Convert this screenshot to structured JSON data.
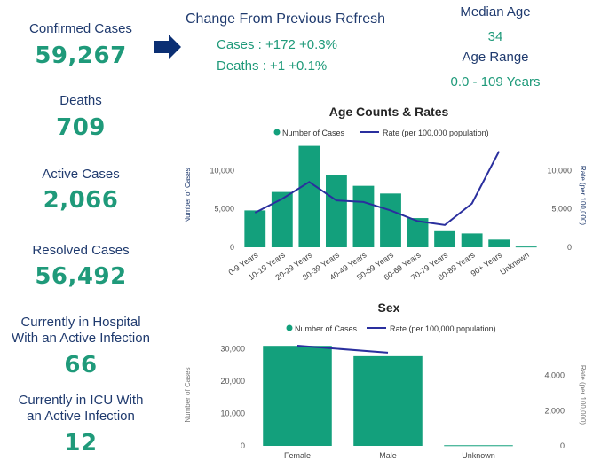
{
  "kpis": {
    "confirmed": {
      "label": "Confirmed Cases",
      "value": "59,267"
    },
    "deaths": {
      "label": "Deaths",
      "value": "709"
    },
    "active": {
      "label": "Active Cases",
      "value": "2,066"
    },
    "resolved": {
      "label": "Resolved Cases",
      "value": "56,492"
    },
    "hospital": {
      "label1": "Currently in Hospital",
      "label2": "With an Active Infection",
      "value": "66"
    },
    "icu": {
      "label1": "Currently in ICU With",
      "label2": "an Active Infection",
      "value": "12"
    }
  },
  "change": {
    "title": "Change From Previous Refresh",
    "cases": "Cases : +172 +0.3%",
    "deaths": "Deaths : +1 +0.1%"
  },
  "median": {
    "label": "Median Age",
    "value": "34",
    "range_label": "Age Range",
    "range_value": "0.0 - 109 Years"
  },
  "colors": {
    "bar": "#13a07c",
    "line": "#2a2f9e",
    "navy": "#1f3a6e",
    "green": "#1f9a7a"
  },
  "chart_data": [
    {
      "type": "bar",
      "title": "Age Counts & Rates",
      "legend": [
        "Number of Cases",
        "Rate (per 100,000 population)"
      ],
      "categories": [
        "0-9 Years",
        "10-19 Years",
        "20-29 Years",
        "30-39 Years",
        "40-49 Years",
        "50-59 Years",
        "60-69 Years",
        "70-79 Years",
        "80-89 Years",
        "90+ Years",
        "Unknown"
      ],
      "series": [
        {
          "name": "Number of Cases",
          "values": [
            4800,
            7200,
            13200,
            9400,
            8000,
            7000,
            3800,
            2100,
            1800,
            1000,
            100
          ]
        },
        {
          "name": "Rate (per 100,000 population)",
          "values": [
            4500,
            6300,
            8500,
            6100,
            5900,
            4800,
            3400,
            2900,
            5700,
            12500,
            null
          ]
        }
      ],
      "ylabel": "Number of Cases",
      "y2label": "Rate (per 100,000)",
      "yticks": [
        "0",
        "5,000",
        "10,000"
      ],
      "y2ticks": [
        "0",
        "5,000",
        "10,000"
      ],
      "ylim": [
        0,
        13500
      ],
      "y2lim": [
        0,
        13500
      ]
    },
    {
      "type": "bar",
      "title": "Sex",
      "legend": [
        "Number of Cases",
        "Rate (per 100,000 population)"
      ],
      "categories": [
        "Female",
        "Male",
        "Unknown"
      ],
      "series": [
        {
          "name": "Number of Cases",
          "values": [
            30900,
            27700,
            200
          ]
        },
        {
          "name": "Rate (per 100,000 population)",
          "values": [
            5700,
            5300,
            null
          ]
        }
      ],
      "ylabel": "Number of Cases",
      "y2label": "Rate (per 100,000)",
      "yticks": [
        "0",
        "10,000",
        "20,000",
        "30,000"
      ],
      "y2ticks": [
        "0",
        "2,000",
        "4,000"
      ],
      "ylim": [
        0,
        31500
      ],
      "y2lim": [
        0,
        5800
      ]
    }
  ]
}
